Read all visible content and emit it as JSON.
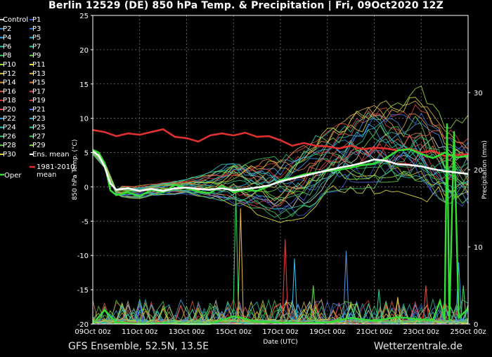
{
  "header": {
    "title": "Berlin 12529 (DE)  850 hPa Temp. & Precipitation | Fri, 09Oct2020 12Z"
  },
  "footer": {
    "left": "GFS Ensemble, 52.5N, 13.5E",
    "right": "Wetterzentrale.de"
  },
  "chart_data": {
    "type": "line",
    "xlabel": "Date (UTC)",
    "ylabel": "850 hPa Temp. (°C)",
    "y2label": "Precipitation (mm)",
    "ylim": [
      -20,
      25
    ],
    "y2lim": [
      0,
      40
    ],
    "xlim": [
      0,
      16
    ],
    "x_ticks": [
      {
        "x": 0,
        "label": "09Oct 00z"
      },
      {
        "x": 2,
        "label": "11Oct 00z"
      },
      {
        "x": 4,
        "label": "13Oct 00z"
      },
      {
        "x": 6,
        "label": "15Oct 00z"
      },
      {
        "x": 8,
        "label": "17Oct 00z"
      },
      {
        "x": 10,
        "label": "19Oct 00z"
      },
      {
        "x": 12,
        "label": "21Oct 00z"
      },
      {
        "x": 14,
        "label": "23Oct 00z"
      },
      {
        "x": 16,
        "label": "25Oct 00z"
      }
    ],
    "y_ticks": [
      25,
      20,
      15,
      10,
      5,
      0,
      -5,
      -10,
      -15,
      -20
    ],
    "y2_ticks": [
      0,
      10,
      20,
      30
    ],
    "grid": true,
    "legend_position": "left",
    "legend": [
      {
        "name": "Control",
        "color": "#cfcfcf"
      },
      {
        "name": "P1",
        "color": "#3c5cd6"
      },
      {
        "name": "P2",
        "color": "#4f8fd8"
      },
      {
        "name": "P3",
        "color": "#2f6fe0"
      },
      {
        "name": "P4",
        "color": "#4aa8e0"
      },
      {
        "name": "P5",
        "color": "#2bb4c8"
      },
      {
        "name": "P6",
        "color": "#26c4a8"
      },
      {
        "name": "P7",
        "color": "#2ac88c"
      },
      {
        "name": "P8",
        "color": "#30c85a"
      },
      {
        "name": "P9",
        "color": "#5ad040"
      },
      {
        "name": "P10",
        "color": "#9ad838"
      },
      {
        "name": "P11",
        "color": "#e0e040"
      },
      {
        "name": "P12",
        "color": "#e0c040"
      },
      {
        "name": "P13",
        "color": "#d8b048"
      },
      {
        "name": "P14",
        "color": "#d89850"
      },
      {
        "name": "P15",
        "color": "#d88048"
      },
      {
        "name": "P16",
        "color": "#d86048"
      },
      {
        "name": "P17",
        "color": "#d84840"
      },
      {
        "name": "P18",
        "color": "#e03838"
      },
      {
        "name": "P19",
        "color": "#d84050"
      },
      {
        "name": "P20",
        "color": "#e05050"
      },
      {
        "name": "P21",
        "color": "#5070e0"
      },
      {
        "name": "P22",
        "color": "#3ca0e8"
      },
      {
        "name": "P23",
        "color": "#38b0e0"
      },
      {
        "name": "P24",
        "color": "#30c0c0"
      },
      {
        "name": "P25",
        "color": "#30c8a0"
      },
      {
        "name": "P26",
        "color": "#38c878"
      },
      {
        "name": "P27",
        "color": "#48c860"
      },
      {
        "name": "P28",
        "color": "#60d048"
      },
      {
        "name": "P29",
        "color": "#88d840"
      },
      {
        "name": "P30",
        "color": "#d8d040"
      },
      {
        "name": "Ens. mean",
        "color": "#ffffff"
      }
    ],
    "climate_legend": {
      "name": "1981-2010",
      "name2": "mean",
      "color": "#e03030"
    },
    "oper_legend": {
      "name": "Oper",
      "color": "#33dd33"
    },
    "series_climate": {
      "name": "1981-2010 mean",
      "x": [
        0,
        0.5,
        1,
        1.5,
        2,
        2.5,
        3,
        3.5,
        4,
        4.5,
        5,
        5.5,
        6,
        6.5,
        7,
        7.5,
        8,
        8.5,
        9,
        9.5,
        10,
        10.5,
        11,
        11.5,
        12,
        12.5,
        13,
        13.5,
        14,
        14.5,
        15,
        15.5,
        16
      ],
      "y": [
        8.3,
        8,
        7.4,
        7.8,
        7.6,
        8,
        8.4,
        7.3,
        7.1,
        6.6,
        7.5,
        7.8,
        7.5,
        7.9,
        7.3,
        7.4,
        6.8,
        6.0,
        6.4,
        6.0,
        5.9,
        5.6,
        6.0,
        5.5,
        5.7,
        5.6,
        5.3,
        5.6,
        5.0,
        5.3,
        4.5,
        4.6,
        4.8
      ]
    },
    "series_mean": {
      "name": "Ens. mean",
      "x": [
        0,
        0.25,
        0.5,
        0.75,
        1,
        1.5,
        2,
        2.5,
        3,
        3.5,
        4,
        4.5,
        5,
        5.5,
        6,
        6.5,
        7,
        7.5,
        8,
        8.5,
        9,
        9.5,
        10,
        10.5,
        11,
        11.5,
        12,
        12.5,
        13,
        13.5,
        14,
        14.5,
        15,
        15.5,
        16
      ],
      "y": [
        5.2,
        4.6,
        3,
        0.5,
        -0.4,
        -0.2,
        -0.6,
        -0.3,
        -0.6,
        -0.2,
        -0.1,
        -0.3,
        -0.4,
        -0.2,
        -0.5,
        -0.3,
        -0.1,
        0.2,
        0.8,
        1.2,
        1.6,
        2.0,
        2.4,
        2.8,
        3.1,
        3.5,
        4.0,
        3.8,
        3.3,
        3.2,
        3.0,
        2.6,
        2.3,
        2.1,
        1.9
      ]
    },
    "series_oper": {
      "name": "Oper",
      "x": [
        0,
        0.25,
        0.5,
        0.75,
        1,
        1.5,
        2,
        2.5,
        3,
        3.5,
        4,
        4.5,
        5,
        5.5,
        6,
        6.5,
        7,
        7.5,
        8,
        8.5,
        9,
        9.5,
        10,
        10.5,
        11,
        11.5,
        12,
        12.5,
        13,
        13.5,
        14,
        14.5,
        15,
        15.5,
        16
      ],
      "y": [
        5.4,
        5,
        3.5,
        -0.5,
        -1.2,
        -0.8,
        -1.4,
        -0.4,
        -0.8,
        0.3,
        -0.2,
        -0.7,
        -0.9,
        0.2,
        -0.8,
        -0.4,
        -0.6,
        0.1,
        1.0,
        1.3,
        1.8,
        2.1,
        2.3,
        2.5,
        2.8,
        3.2,
        3.4,
        4.2,
        5.3,
        5.5,
        4.8,
        4.2,
        5.0,
        4.3,
        4.5
      ]
    },
    "series_oper_precip": {
      "name": "Oper precipitation",
      "x": [
        0,
        0.5,
        1,
        2,
        3,
        4,
        5,
        6,
        7,
        8,
        9,
        10,
        11,
        12,
        13,
        14,
        14.5,
        14.8,
        15.0,
        15.1,
        15.2,
        15.4,
        15.6,
        16
      ],
      "y": [
        0,
        1.8,
        0.2,
        0,
        0.1,
        0,
        0,
        1.0,
        0.3,
        0.2,
        0.1,
        0.2,
        0.8,
        0.4,
        0.9,
        0.6,
        0.5,
        3.0,
        0.5,
        26.0,
        0.4,
        25.0,
        0.8,
        2.0
      ]
    },
    "ensemble_members": {
      "count": 30,
      "spread_x": [
        0,
        0.5,
        1,
        2,
        3,
        4,
        5,
        6,
        7,
        8,
        9,
        10,
        11,
        12,
        13,
        14,
        15,
        16
      ],
      "spread_low": [
        4.0,
        1.5,
        -2.0,
        -2.0,
        -1.5,
        -1.5,
        -2.5,
        -4.0,
        -5.5,
        -7.0,
        -6.5,
        -3.0,
        -3.0,
        -3.5,
        -3.0,
        -4.5,
        -6.0,
        -7.0
      ],
      "spread_high": [
        6.0,
        5.0,
        0.5,
        0.5,
        1.0,
        1.5,
        3.0,
        6.0,
        6.0,
        7.0,
        9.0,
        11.0,
        14.0,
        16.0,
        15.5,
        17.5,
        12.0,
        13.0
      ],
      "precip_peaks_mm": [
        {
          "x": 2.0,
          "mm": 3.0
        },
        {
          "x": 6.1,
          "mm": 17.0
        },
        {
          "x": 6.3,
          "mm": 15.0
        },
        {
          "x": 8.2,
          "mm": 11.0
        },
        {
          "x": 8.6,
          "mm": 8.5
        },
        {
          "x": 9.4,
          "mm": 5.0
        },
        {
          "x": 10.8,
          "mm": 9.5
        },
        {
          "x": 12.2,
          "mm": 4.5
        },
        {
          "x": 13.0,
          "mm": 3.5
        },
        {
          "x": 14.2,
          "mm": 5.0
        },
        {
          "x": 15.6,
          "mm": 8.0
        },
        {
          "x": 15.8,
          "mm": 5.0
        }
      ]
    }
  }
}
